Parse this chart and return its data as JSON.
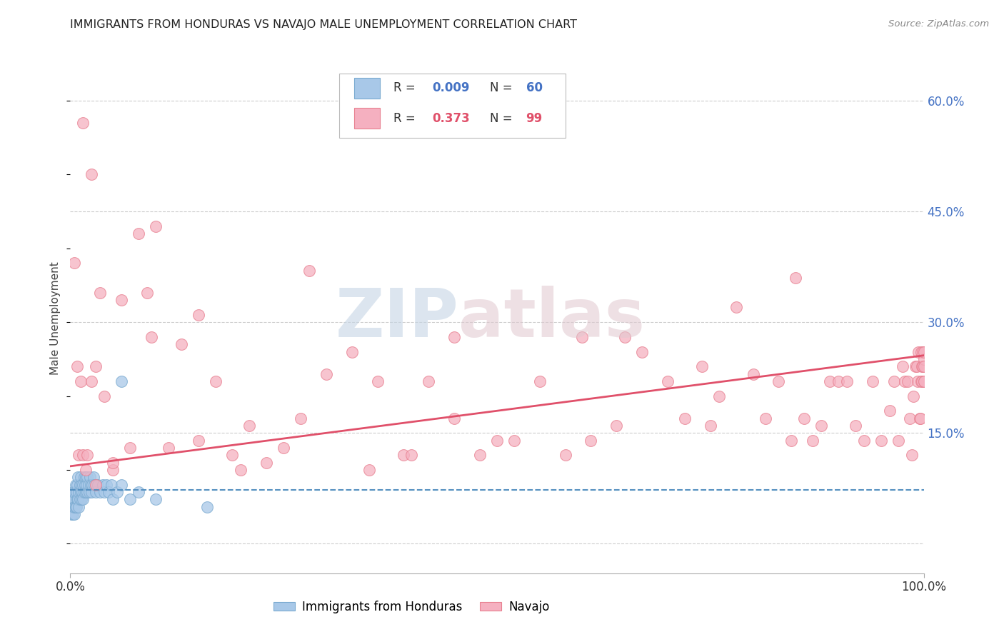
{
  "title": "IMMIGRANTS FROM HONDURAS VS NAVAJO MALE UNEMPLOYMENT CORRELATION CHART",
  "source": "Source: ZipAtlas.com",
  "ylabel": "Male Unemployment",
  "background_color": "#ffffff",
  "plot_bg_color": "#ffffff",
  "grid_color": "#cccccc",
  "blue_color": "#a8c8e8",
  "blue_edge_color": "#7aaad0",
  "blue_line_color": "#5590c0",
  "pink_color": "#f5b0c0",
  "pink_edge_color": "#e88090",
  "pink_line_color": "#e0506a",
  "title_color": "#222222",
  "source_color": "#888888",
  "ytick_color": "#4472c4",
  "legend_r_color_blue": "#4472c4",
  "legend_r_color_pink": "#e0506a",
  "legend_n_color": "#4472c4",
  "blue_scatter_x": [
    0.001,
    0.002,
    0.002,
    0.003,
    0.003,
    0.004,
    0.004,
    0.005,
    0.005,
    0.005,
    0.006,
    0.006,
    0.007,
    0.007,
    0.008,
    0.008,
    0.009,
    0.009,
    0.01,
    0.01,
    0.011,
    0.011,
    0.012,
    0.012,
    0.013,
    0.013,
    0.014,
    0.015,
    0.015,
    0.016,
    0.016,
    0.017,
    0.018,
    0.018,
    0.019,
    0.02,
    0.02,
    0.021,
    0.022,
    0.023,
    0.024,
    0.025,
    0.026,
    0.027,
    0.028,
    0.03,
    0.032,
    0.035,
    0.038,
    0.04,
    0.042,
    0.045,
    0.048,
    0.05,
    0.055,
    0.06,
    0.07,
    0.08,
    0.1,
    0.16
  ],
  "blue_scatter_y": [
    0.04,
    0.05,
    0.06,
    0.04,
    0.07,
    0.05,
    0.06,
    0.04,
    0.05,
    0.07,
    0.05,
    0.08,
    0.05,
    0.07,
    0.06,
    0.08,
    0.06,
    0.09,
    0.05,
    0.07,
    0.06,
    0.08,
    0.07,
    0.09,
    0.06,
    0.08,
    0.07,
    0.06,
    0.08,
    0.07,
    0.09,
    0.08,
    0.07,
    0.09,
    0.08,
    0.07,
    0.09,
    0.08,
    0.07,
    0.09,
    0.08,
    0.07,
    0.08,
    0.09,
    0.08,
    0.07,
    0.08,
    0.07,
    0.08,
    0.07,
    0.08,
    0.07,
    0.08,
    0.06,
    0.07,
    0.08,
    0.06,
    0.07,
    0.06,
    0.05
  ],
  "blue_special_x": [
    0.06
  ],
  "blue_special_y": [
    0.22
  ],
  "pink_scatter_x": [
    0.005,
    0.008,
    0.01,
    0.012,
    0.015,
    0.018,
    0.02,
    0.025,
    0.03,
    0.035,
    0.04,
    0.05,
    0.06,
    0.07,
    0.08,
    0.09,
    0.1,
    0.115,
    0.13,
    0.15,
    0.17,
    0.19,
    0.21,
    0.23,
    0.25,
    0.27,
    0.3,
    0.33,
    0.36,
    0.39,
    0.42,
    0.45,
    0.48,
    0.5,
    0.52,
    0.55,
    0.58,
    0.61,
    0.64,
    0.67,
    0.7,
    0.72,
    0.74,
    0.76,
    0.78,
    0.8,
    0.815,
    0.83,
    0.845,
    0.86,
    0.87,
    0.88,
    0.89,
    0.9,
    0.91,
    0.92,
    0.93,
    0.94,
    0.95,
    0.96,
    0.965,
    0.97,
    0.975,
    0.978,
    0.981,
    0.984,
    0.986,
    0.988,
    0.99,
    0.992,
    0.993,
    0.994,
    0.995,
    0.996,
    0.997,
    0.997,
    0.998,
    0.998,
    0.999,
    0.999,
    1.0,
    1.0,
    1.0,
    1.0,
    1.0,
    0.05,
    0.15,
    0.35,
    0.45,
    0.65,
    0.75,
    0.85,
    0.095,
    0.2,
    0.28,
    0.4,
    0.6,
    0.03,
    0.015,
    0.025
  ],
  "pink_scatter_y": [
    0.38,
    0.24,
    0.12,
    0.22,
    0.12,
    0.1,
    0.12,
    0.22,
    0.24,
    0.34,
    0.2,
    0.1,
    0.33,
    0.13,
    0.42,
    0.34,
    0.43,
    0.13,
    0.27,
    0.31,
    0.22,
    0.12,
    0.16,
    0.11,
    0.13,
    0.17,
    0.23,
    0.26,
    0.22,
    0.12,
    0.22,
    0.17,
    0.12,
    0.14,
    0.14,
    0.22,
    0.12,
    0.14,
    0.16,
    0.26,
    0.22,
    0.17,
    0.24,
    0.2,
    0.32,
    0.23,
    0.17,
    0.22,
    0.14,
    0.17,
    0.14,
    0.16,
    0.22,
    0.22,
    0.22,
    0.16,
    0.14,
    0.22,
    0.14,
    0.18,
    0.22,
    0.14,
    0.24,
    0.22,
    0.22,
    0.17,
    0.12,
    0.2,
    0.24,
    0.24,
    0.22,
    0.26,
    0.17,
    0.17,
    0.22,
    0.26,
    0.24,
    0.22,
    0.26,
    0.24,
    0.25,
    0.22,
    0.24,
    0.26,
    0.22,
    0.11,
    0.14,
    0.1,
    0.28,
    0.28,
    0.16,
    0.36,
    0.28,
    0.1,
    0.37,
    0.12,
    0.28,
    0.08,
    0.57,
    0.5
  ],
  "pink_line_x0": 0.0,
  "pink_line_y0": 0.105,
  "pink_line_x1": 1.0,
  "pink_line_y1": 0.255,
  "blue_line_x0": 0.0,
  "blue_line_y0": 0.073,
  "blue_line_x1": 1.0,
  "blue_line_y1": 0.073,
  "ylim_min": -0.04,
  "ylim_max": 0.65,
  "xlim_min": 0.0,
  "xlim_max": 1.0
}
